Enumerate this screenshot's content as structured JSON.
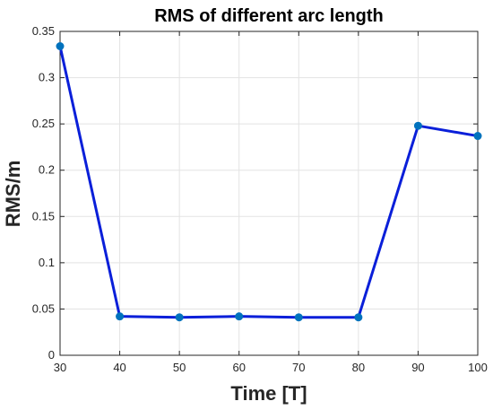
{
  "chart_data": {
    "type": "line",
    "title": "RMS of different arc length",
    "xlabel": "Time [T]",
    "ylabel": "RMS/m",
    "xlim": [
      30,
      100
    ],
    "ylim": [
      0,
      0.35
    ],
    "xticks": [
      30,
      40,
      50,
      60,
      70,
      80,
      90,
      100
    ],
    "yticks": [
      0,
      0.05,
      0.1,
      0.15,
      0.2,
      0.25,
      0.3,
      0.35
    ],
    "grid": true,
    "series": [
      {
        "x": [
          30,
          40,
          50,
          60,
          70,
          80,
          90,
          100
        ],
        "values": [
          0.334,
          0.042,
          0.041,
          0.042,
          0.041,
          0.041,
          0.248,
          0.237
        ],
        "line_color": "#0A1FD9",
        "marker_color": "#0072BD"
      }
    ]
  }
}
